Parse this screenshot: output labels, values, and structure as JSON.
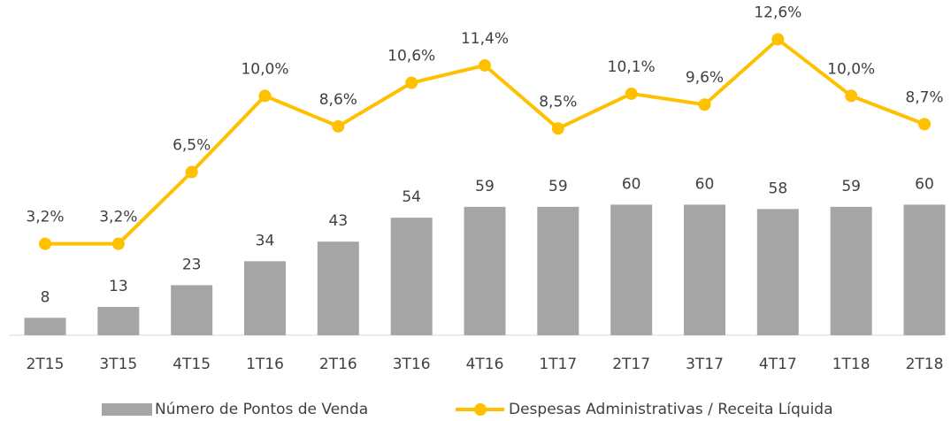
{
  "chart_data": {
    "type": "bar_line",
    "categories": [
      "2T15",
      "3T15",
      "4T15",
      "1T16",
      "2T16",
      "3T16",
      "4T16",
      "1T17",
      "2T17",
      "3T17",
      "4T17",
      "1T18",
      "2T18"
    ],
    "series": [
      {
        "name": "Número de Pontos de Venda",
        "type": "bar",
        "color": "#a5a5a5",
        "values": [
          8,
          13,
          23,
          34,
          43,
          54,
          59,
          59,
          60,
          60,
          58,
          59,
          60
        ]
      },
      {
        "name": "Despesas Administrativas / Receita Líquida",
        "type": "line",
        "axis": "y2",
        "color": "#ffc000",
        "values": [
          3.2,
          3.2,
          6.5,
          10.0,
          8.6,
          10.6,
          11.4,
          8.5,
          10.1,
          9.6,
          12.6,
          10.0,
          8.7
        ],
        "value_labels": [
          "3,2%",
          "3,2%",
          "6,5%",
          "10,0%",
          "8,6%",
          "10,6%",
          "11,4%",
          "8,5%",
          "10,1%",
          "9,6%",
          "12,6%",
          "10,0%",
          "8,7%"
        ]
      }
    ],
    "ylim": [
      0,
      150
    ],
    "y2lim": [
      -1,
      14
    ],
    "legend": "bottom"
  }
}
